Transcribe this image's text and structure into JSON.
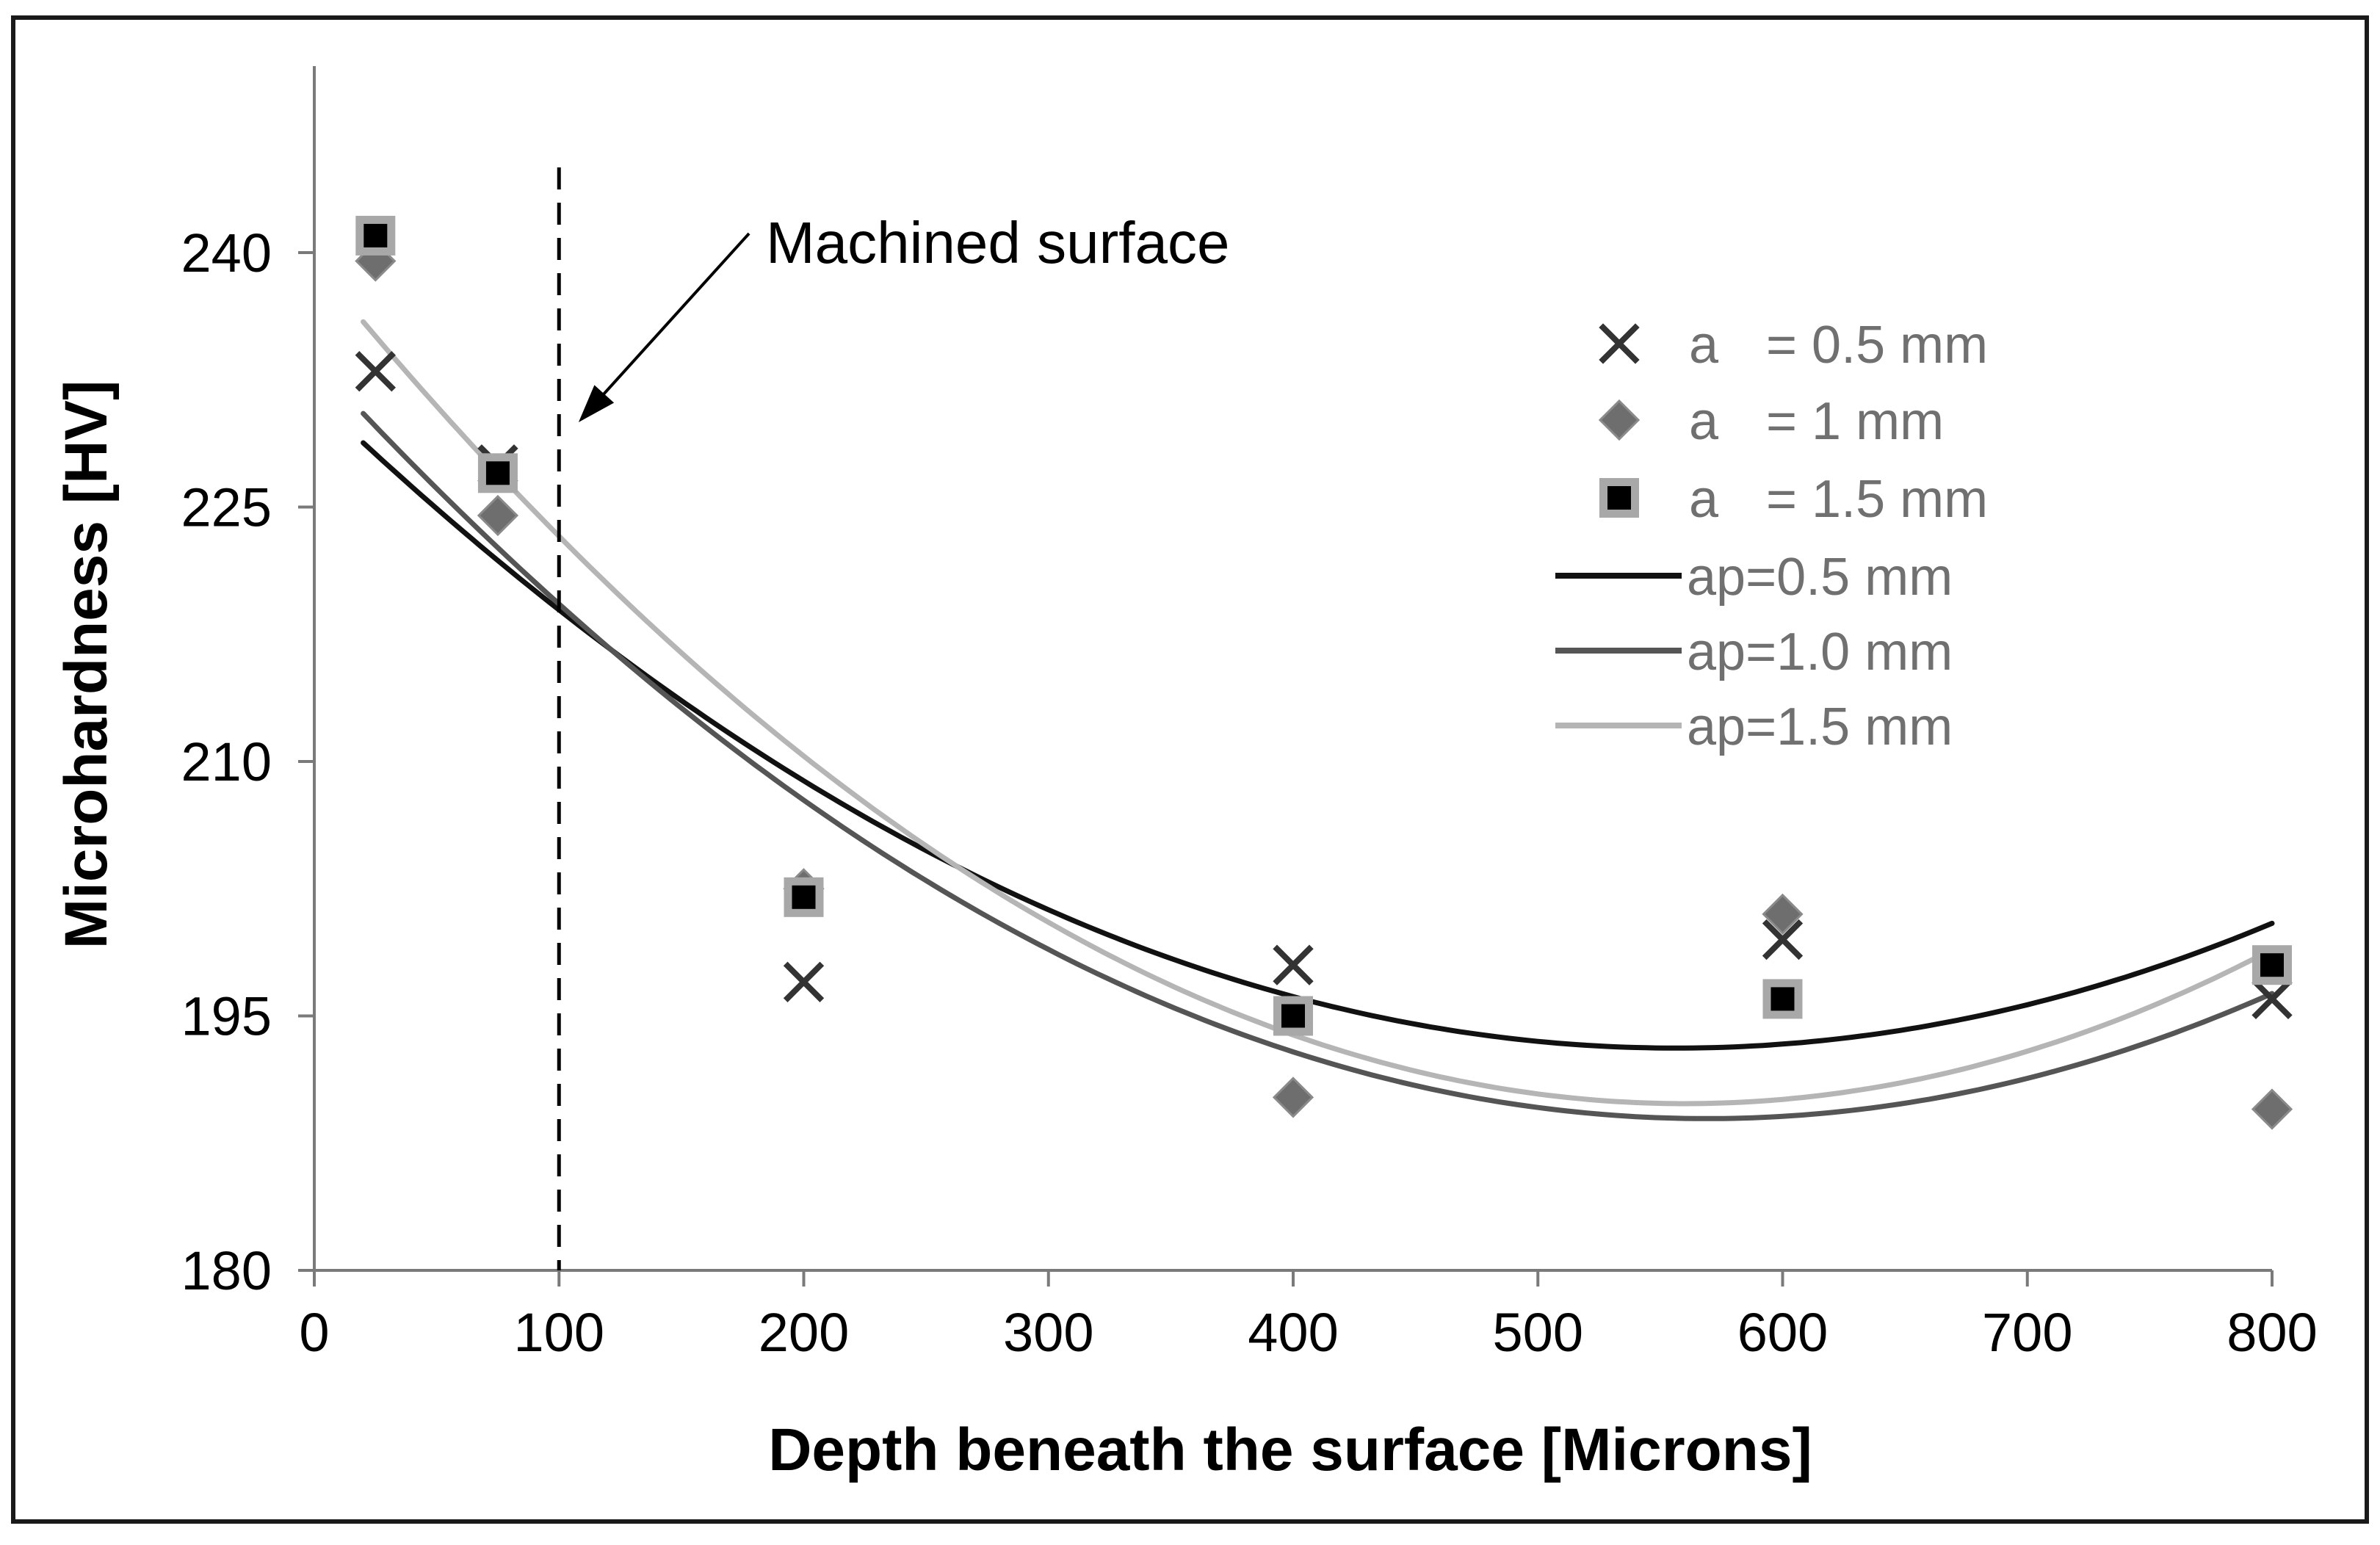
{
  "chart_data": {
    "type": "scatter",
    "title": "",
    "xlabel": "Depth beneath the surface [Microns]",
    "ylabel": "Microhardness [HV]",
    "xlim": [
      0,
      800
    ],
    "ylim": [
      180,
      250
    ],
    "x_ticks": [
      0,
      100,
      200,
      300,
      400,
      500,
      600,
      700,
      800
    ],
    "x_tick_labels": [
      "0",
      "100",
      "200",
      "300",
      "400",
      "500",
      "600",
      "700",
      "800"
    ],
    "y_ticks": [
      180,
      195,
      210,
      225,
      240
    ],
    "y_tick_labels": [
      "180",
      "195",
      "210",
      "225",
      "240"
    ],
    "grid": false,
    "legend_position": "top-right",
    "series": [
      {
        "name": "a = 0.5 mm",
        "legend_prefix": "a",
        "legend_suffix": "= 0.5 mm",
        "marker": "x",
        "color": "#333333",
        "x": [
          25,
          75,
          200,
          400,
          600,
          800
        ],
        "y": [
          233,
          227.5,
          197,
          198,
          199.5,
          196
        ]
      },
      {
        "name": "a = 1 mm",
        "legend_prefix": "a",
        "legend_suffix": "= 1 mm",
        "marker": "diamond",
        "color": "#6e6e6e",
        "x": [
          25,
          75,
          200,
          400,
          600,
          800
        ],
        "y": [
          239.5,
          224.5,
          202.5,
          190.2,
          201,
          189.5
        ]
      },
      {
        "name": "a = 1.5 mm",
        "legend_prefix": "a",
        "legend_suffix": "= 1.5 mm",
        "marker": "square",
        "color": "#000000",
        "edge_color": "#a8a8a8",
        "x": [
          25,
          75,
          200,
          400,
          600,
          800
        ],
        "y": [
          241,
          227,
          202,
          195,
          196,
          198
        ]
      }
    ],
    "fits": [
      {
        "name": "ap=0.5 mm",
        "color": "#111111",
        "x_range": [
          20,
          800
        ],
        "coefficients": [
          231.5,
          -0.138,
          0.000124
        ]
      },
      {
        "name": "ap=1.0 mm",
        "color": "#555555",
        "x_range": [
          20,
          800
        ],
        "coefficients": [
          233.6,
          -0.157,
          0.000138
        ]
      },
      {
        "name": "ap=1.5 mm",
        "color": "#b5b5b5",
        "x_range": [
          20,
          800
        ],
        "coefficients": [
          239.4,
          -0.177,
          0.000158
        ]
      }
    ],
    "annotations": [
      {
        "text": "Machined surface",
        "type": "vertical-dashed-line",
        "x": 100,
        "arrow_target_x": 108,
        "arrow_target_y": 230
      }
    ]
  }
}
